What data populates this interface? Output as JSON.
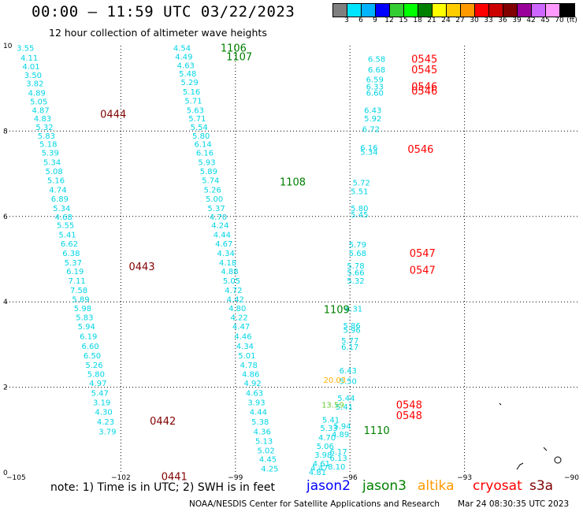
{
  "header": {
    "title": "00:00 – 11:59 UTC 03/22/2023",
    "subtitle": "12 hour collection of altimeter wave heights"
  },
  "colorbar": {
    "colors": [
      "#7f7f7f",
      "#00e5ff",
      "#00b3ff",
      "#0000ff",
      "#33cc33",
      "#00ff00",
      "#008000",
      "#ffff00",
      "#ffcc00",
      "#ff9900",
      "#ff0000",
      "#cc0000",
      "#800000",
      "#990099",
      "#cc66ff",
      "#ff99ff",
      "#000000"
    ],
    "labels": [
      "3",
      "6",
      "9",
      "12",
      "15",
      "18",
      "21",
      "24",
      "27",
      "30",
      "33",
      "36",
      "39",
      "42",
      "45",
      "70"
    ],
    "unit": "(ft)"
  },
  "chart_data": {
    "type": "scatter",
    "xlim": [
      -105,
      -90
    ],
    "ylim": [
      0,
      10
    ],
    "x_ticks": [
      -105,
      -102,
      -99,
      -96,
      -93,
      -90
    ],
    "y_ticks": [
      0,
      2,
      4,
      6,
      8,
      10
    ],
    "x_tick_labels": [
      "−105",
      "−102",
      "−99",
      "−96",
      "−93",
      "−90"
    ],
    "y_tick_labels": [
      "0",
      "2",
      "4",
      "6",
      "8",
      "10"
    ],
    "grid": true,
    "series": [
      {
        "name": "jason3",
        "color": "#00d5e5",
        "points": [
          [
            -104.5,
            9.95,
            "3.55"
          ],
          [
            -104.4,
            9.72,
            "4.11"
          ],
          [
            -104.35,
            9.52,
            "4.01"
          ],
          [
            -104.3,
            9.32,
            "3.50"
          ],
          [
            -104.25,
            9.12,
            "3.82"
          ],
          [
            -104.2,
            8.9,
            "4.89"
          ],
          [
            -104.15,
            8.7,
            "5.05"
          ],
          [
            -104.1,
            8.5,
            "4.87"
          ],
          [
            -104.05,
            8.3,
            "4.83"
          ],
          [
            -104.0,
            8.1,
            "5.32"
          ],
          [
            -103.95,
            7.9,
            "5.83"
          ],
          [
            -103.9,
            7.7,
            "5.18"
          ],
          [
            -103.85,
            7.5,
            "5.39"
          ],
          [
            -103.8,
            7.28,
            "5.34"
          ],
          [
            -103.75,
            7.07,
            "5.08"
          ],
          [
            -103.7,
            6.85,
            "5.16"
          ],
          [
            -103.65,
            6.63,
            "4.74"
          ],
          [
            -103.6,
            6.42,
            "6.89"
          ],
          [
            -103.55,
            6.2,
            "5.34"
          ],
          [
            -103.5,
            6.0,
            "4.68"
          ],
          [
            -103.45,
            5.8,
            "5.55"
          ],
          [
            -103.4,
            5.58,
            "5.41"
          ],
          [
            -103.35,
            5.37,
            "6.62"
          ],
          [
            -103.3,
            5.15,
            "6.38"
          ],
          [
            -103.25,
            4.93,
            "5.37"
          ],
          [
            -103.2,
            4.72,
            "6.19"
          ],
          [
            -103.15,
            4.5,
            "7.11"
          ],
          [
            -103.1,
            4.28,
            "7.58"
          ],
          [
            -103.05,
            4.07,
            "5.89"
          ],
          [
            -103.0,
            3.86,
            "5.98"
          ],
          [
            -102.95,
            3.64,
            "5.83"
          ],
          [
            -102.9,
            3.43,
            "5.94"
          ],
          [
            -102.85,
            3.2,
            "6.19"
          ],
          [
            -102.8,
            2.97,
            "6.60"
          ],
          [
            -102.75,
            2.75,
            "6.50"
          ],
          [
            -102.7,
            2.53,
            "5.26"
          ],
          [
            -102.65,
            2.32,
            "5.80"
          ],
          [
            -102.6,
            2.1,
            "4.97"
          ],
          [
            -102.55,
            1.87,
            "5.47"
          ],
          [
            -102.5,
            1.65,
            "3.19"
          ],
          [
            -102.45,
            1.43,
            "4.30"
          ],
          [
            -102.4,
            1.2,
            "4.23"
          ],
          [
            -102.35,
            0.97,
            "3.79"
          ],
          [
            -100.4,
            9.95,
            "4.54"
          ],
          [
            -100.35,
            9.75,
            "4.49"
          ],
          [
            -100.3,
            9.55,
            "4.63"
          ],
          [
            -100.25,
            9.35,
            "5.48"
          ],
          [
            -100.2,
            9.15,
            "5.29"
          ],
          [
            -100.15,
            8.93,
            "5.16"
          ],
          [
            -100.1,
            8.72,
            "5.71"
          ],
          [
            -100.05,
            8.5,
            "5.63"
          ],
          [
            -100.0,
            8.3,
            "5.71"
          ],
          [
            -99.95,
            8.1,
            "5.54"
          ],
          [
            -99.9,
            7.9,
            "5.80"
          ],
          [
            -99.85,
            7.7,
            "6.14"
          ],
          [
            -99.8,
            7.5,
            "6.16"
          ],
          [
            -99.75,
            7.28,
            "5.93"
          ],
          [
            -99.7,
            7.07,
            "5.89"
          ],
          [
            -99.65,
            6.85,
            "5.74"
          ],
          [
            -99.6,
            6.63,
            "5.26"
          ],
          [
            -99.55,
            6.42,
            "5.00"
          ],
          [
            -99.5,
            6.2,
            "5.37"
          ],
          [
            -99.45,
            6.0,
            "4.70"
          ],
          [
            -99.4,
            5.8,
            "4.24"
          ],
          [
            -99.35,
            5.58,
            "4.44"
          ],
          [
            -99.3,
            5.37,
            "4.67"
          ],
          [
            -99.25,
            5.15,
            "4.34"
          ],
          [
            -99.2,
            4.93,
            "4.18"
          ],
          [
            -99.15,
            4.72,
            "4.88"
          ],
          [
            -99.1,
            4.5,
            "5.05"
          ],
          [
            -99.05,
            4.28,
            "4.72"
          ],
          [
            -99.0,
            4.07,
            "4.42"
          ],
          [
            -98.95,
            3.86,
            "4.80"
          ],
          [
            -98.9,
            3.64,
            "4.22"
          ],
          [
            -98.85,
            3.43,
            "4.47"
          ],
          [
            -98.8,
            3.2,
            "4.46"
          ],
          [
            -98.75,
            2.97,
            "4.34"
          ],
          [
            -98.7,
            2.75,
            "5.01"
          ],
          [
            -98.65,
            2.53,
            "4.78"
          ],
          [
            -98.6,
            2.32,
            "4.86"
          ],
          [
            -98.55,
            2.1,
            "4.92"
          ],
          [
            -98.5,
            1.87,
            "4.63"
          ],
          [
            -98.45,
            1.65,
            "3.93"
          ],
          [
            -98.4,
            1.43,
            "4.44"
          ],
          [
            -98.35,
            1.2,
            "5.38"
          ],
          [
            -98.3,
            0.97,
            "4.36"
          ],
          [
            -98.25,
            0.75,
            "5.13"
          ],
          [
            -98.2,
            0.53,
            "5.02"
          ],
          [
            -98.15,
            0.32,
            "4.45"
          ],
          [
            -98.1,
            0.1,
            "4.25"
          ]
        ]
      },
      {
        "name": "cryosat",
        "color": "#00d5e5",
        "points": [
          [
            -95.3,
            9.7,
            "6.58"
          ],
          [
            -95.3,
            9.45,
            "6.68"
          ],
          [
            -95.35,
            9.22,
            "6.59"
          ],
          [
            -95.35,
            9.05,
            "6.33"
          ],
          [
            -95.35,
            8.9,
            "6.60"
          ],
          [
            -95.4,
            8.5,
            "6.43"
          ],
          [
            -95.4,
            8.3,
            "5.92"
          ],
          [
            -95.45,
            8.05,
            "6.72"
          ],
          [
            -95.5,
            7.62,
            "6.16"
          ],
          [
            -95.5,
            7.52,
            "5.34"
          ],
          [
            -95.7,
            6.8,
            "5.72"
          ],
          [
            -95.75,
            6.6,
            "5.51"
          ],
          [
            -95.75,
            6.2,
            "5.80"
          ],
          [
            -95.75,
            6.05,
            "5.45"
          ],
          [
            -95.8,
            5.35,
            "5.79"
          ],
          [
            -95.8,
            5.15,
            "5.68"
          ],
          [
            -95.85,
            4.85,
            "5.78"
          ],
          [
            -95.85,
            4.7,
            "5.66"
          ],
          [
            -95.85,
            4.5,
            "5.32"
          ],
          [
            -95.9,
            3.85,
            "6.31"
          ],
          [
            -95.95,
            3.45,
            "5.86"
          ],
          [
            -95.95,
            3.35,
            "5.96"
          ],
          [
            -96.0,
            3.1,
            "5.77"
          ],
          [
            -96.0,
            2.95,
            "6.17"
          ],
          [
            -96.05,
            2.4,
            "6.43"
          ],
          [
            -96.05,
            2.15,
            "5.50"
          ],
          [
            -96.1,
            1.75,
            "5.44"
          ],
          [
            -96.15,
            1.55,
            "5.41"
          ],
          [
            -96.2,
            1.1,
            "5.94"
          ],
          [
            -96.25,
            0.9,
            "4.89"
          ],
          [
            -96.3,
            0.5,
            "6.17"
          ],
          [
            -96.3,
            0.35,
            "6.13"
          ],
          [
            -96.35,
            0.15,
            "8.10"
          ]
        ]
      },
      {
        "name": "altika",
        "color": "#00d5e5",
        "points": [
          [
            -96.5,
            1.25,
            "5.41"
          ],
          [
            -96.55,
            1.05,
            "5.33"
          ],
          [
            -96.6,
            0.83,
            "4.70"
          ],
          [
            -96.65,
            0.63,
            "5.06"
          ],
          [
            -96.7,
            0.42,
            "3.98"
          ],
          [
            -96.75,
            0.22,
            "4.61"
          ],
          [
            -96.8,
            0.12,
            "4.47"
          ],
          [
            -96.85,
            0.02,
            "4.81"
          ]
        ]
      }
    ],
    "highlighted_points": [
      {
        "x": -96.4,
        "y": 2.18,
        "label": "20.03",
        "color": "#ffb000"
      },
      {
        "x": -96.45,
        "y": 1.6,
        "label": "13.59",
        "color": "#66cc33"
      }
    ],
    "time_labels": [
      {
        "x": -102.2,
        "y": 8.4,
        "label": "0444",
        "color": "#800000"
      },
      {
        "x": -101.45,
        "y": 4.83,
        "label": "0443",
        "color": "#800000"
      },
      {
        "x": -100.9,
        "y": 1.22,
        "label": "0442",
        "color": "#800000"
      },
      {
        "x": -100.6,
        "y": -0.08,
        "label": "0441",
        "color": "#800000"
      },
      {
        "x": -99.05,
        "y": 9.95,
        "label": "1106",
        "color": "#008000"
      },
      {
        "x": -98.9,
        "y": 9.75,
        "label": "1107",
        "color": "#008000"
      },
      {
        "x": -97.5,
        "y": 6.82,
        "label": "1108",
        "color": "#008000"
      },
      {
        "x": -96.35,
        "y": 3.83,
        "label": "1109",
        "color": "#008000"
      },
      {
        "x": -95.3,
        "y": 1.0,
        "label": "1110",
        "color": "#008000"
      },
      {
        "x": -94.05,
        "y": 9.7,
        "label": "0545",
        "color": "#ff0000"
      },
      {
        "x": -94.05,
        "y": 9.45,
        "label": "0545",
        "color": "#ff0000"
      },
      {
        "x": -94.05,
        "y": 9.05,
        "label": "0546",
        "color": "#ff0000"
      },
      {
        "x": -94.05,
        "y": 8.95,
        "label": "0546",
        "color": "#ff0000"
      },
      {
        "x": -94.15,
        "y": 7.58,
        "label": "0546",
        "color": "#ff0000"
      },
      {
        "x": -94.1,
        "y": 5.15,
        "label": "0547",
        "color": "#ff0000"
      },
      {
        "x": -94.1,
        "y": 4.75,
        "label": "0547",
        "color": "#ff0000"
      },
      {
        "x": -94.45,
        "y": 1.6,
        "label": "0548",
        "color": "#ff0000"
      },
      {
        "x": -94.45,
        "y": 1.35,
        "label": "0548",
        "color": "#ff0000"
      }
    ]
  },
  "footer": {
    "note": "note: 1) Time is in UTC; 2) SWH is in feet",
    "satellites": [
      {
        "name": "jason2",
        "color": "#0000ff"
      },
      {
        "name": "jason3",
        "color": "#008000"
      },
      {
        "name": "altika",
        "color": "#ff9900"
      },
      {
        "name": "cryosat",
        "color": "#ff0000"
      },
      {
        "name": "s3a",
        "color": "#800000"
      }
    ],
    "credit": "NOAA/NESDIS Center for Satellite Applications and Research",
    "timestamp": "Mar 24 08:30:35 UTC 2023"
  }
}
